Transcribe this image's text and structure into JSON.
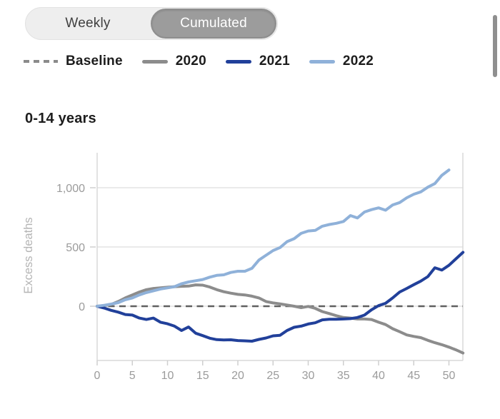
{
  "toggle": {
    "options": [
      {
        "label": "Weekly",
        "selected": false
      },
      {
        "label": "Cumulated",
        "selected": true
      }
    ]
  },
  "legend": {
    "items": [
      {
        "label": "Baseline",
        "type": "dashed",
        "color": "#8a8a8a"
      },
      {
        "label": "2020",
        "type": "solid",
        "color": "#8c8c8c"
      },
      {
        "label": "2021",
        "type": "solid",
        "color": "#21409a"
      },
      {
        "label": "2022",
        "type": "solid",
        "color": "#8fb1d9"
      }
    ]
  },
  "section": {
    "title": "0-14 years"
  },
  "chart_data": {
    "type": "line",
    "title": "0-14 years",
    "xlabel": "",
    "ylabel": "Excess deaths",
    "xlim": [
      0,
      52
    ],
    "ylim": [
      -450,
      1250
    ],
    "grid": true,
    "x_step": 1,
    "x_ticks": [
      0,
      5,
      10,
      15,
      20,
      25,
      30,
      35,
      40,
      45,
      50
    ],
    "y_ticks": [
      {
        "value": 0,
        "label": "0"
      },
      {
        "value": 500,
        "label": "500"
      },
      {
        "value": 1000,
        "label": "1,000"
      }
    ],
    "baseline": {
      "label": "Baseline",
      "y": 0,
      "style": "dashed",
      "color": "#606060"
    },
    "series": [
      {
        "name": "2020",
        "color": "#8c8c8c",
        "values": [
          0,
          5,
          15,
          40,
          70,
          95,
          120,
          140,
          150,
          155,
          160,
          165,
          168,
          170,
          180,
          178,
          162,
          140,
          122,
          110,
          100,
          95,
          85,
          70,
          40,
          28,
          20,
          10,
          0,
          -12,
          -2,
          -18,
          -45,
          -62,
          -80,
          -95,
          -100,
          -108,
          -108,
          -112,
          -135,
          -155,
          -190,
          -215,
          -242,
          -255,
          -265,
          -288,
          -308,
          -325,
          -345,
          -368,
          -395
        ]
      },
      {
        "name": "2021",
        "color": "#21409a",
        "values": [
          0,
          -15,
          -35,
          -50,
          -70,
          -75,
          -100,
          -112,
          -100,
          -135,
          -148,
          -168,
          -205,
          -175,
          -228,
          -248,
          -270,
          -282,
          -285,
          -283,
          -290,
          -292,
          -295,
          -280,
          -268,
          -250,
          -245,
          -205,
          -178,
          -168,
          -150,
          -140,
          -115,
          -110,
          -110,
          -108,
          -105,
          -95,
          -75,
          -30,
          5,
          25,
          70,
          120,
          150,
          182,
          212,
          250,
          325,
          305,
          345,
          400,
          455
        ]
      },
      {
        "name": "2022",
        "color": "#8fb1d9",
        "values": [
          0,
          8,
          18,
          30,
          55,
          70,
          95,
          115,
          130,
          145,
          155,
          165,
          190,
          205,
          215,
          225,
          245,
          260,
          265,
          285,
          295,
          295,
          320,
          390,
          430,
          470,
          495,
          545,
          570,
          615,
          635,
          640,
          675,
          690,
          700,
          715,
          765,
          745,
          795,
          815,
          830,
          810,
          855,
          875,
          915,
          945,
          965,
          1005,
          1035,
          1105,
          1150
        ]
      }
    ],
    "colors": {
      "gridline": "#e3e3e3",
      "axis": "#d9d9d9",
      "tick": "#cfcfcf",
      "tick_label": "#9b9b9b",
      "axis_label": "#b5b5b5"
    }
  },
  "scrollbar": {
    "visible": "true"
  }
}
